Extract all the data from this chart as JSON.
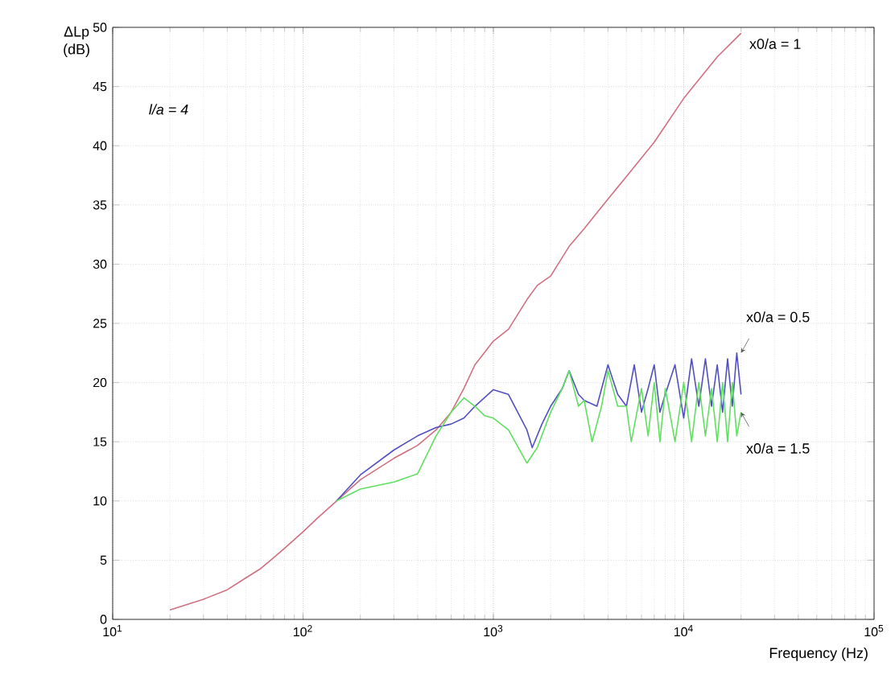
{
  "chart_data": {
    "type": "line",
    "xlabel": "Frequency (Hz)",
    "ylabel": "ΔLp (dB)",
    "log": "x",
    "grid": true,
    "line_style": "solid",
    "marker": "none",
    "xlim": [
      10,
      100000
    ],
    "ylim": [
      0,
      50
    ],
    "xticks": [
      {
        "value": 10,
        "label": "10$^{1}$"
      },
      {
        "value": 100,
        "label": "10$^{2}$"
      },
      {
        "value": 1000,
        "label": "10$^{3}$"
      },
      {
        "value": 10000,
        "label": "10$^{4}$"
      },
      {
        "value": 100000,
        "label": "10$^{5}$"
      }
    ],
    "yticks": [
      0,
      5,
      10,
      15,
      20,
      25,
      30,
      35,
      40,
      45,
      50
    ],
    "annotations": [
      "l/a = 4"
    ],
    "series": [
      {
        "name": "x0/a = 1",
        "color": "#d07080",
        "x": [
          20,
          30,
          40,
          50,
          60,
          70,
          80,
          100,
          120,
          150,
          200,
          300,
          400,
          500,
          600,
          700,
          800,
          1000,
          1200,
          1500,
          1700,
          2000,
          2500,
          3000,
          4000,
          5000,
          7000,
          10000,
          15000,
          20000
        ],
        "values": [
          0.8,
          1.7,
          2.5,
          3.5,
          4.3,
          5.2,
          6,
          7.4,
          8.6,
          10,
          11.8,
          13.6,
          14.7,
          16,
          17.5,
          19.5,
          21.5,
          23.5,
          24.5,
          27,
          28.2,
          29,
          31.5,
          33,
          35.5,
          37.4,
          40.3,
          44,
          47.5,
          49.5
        ]
      },
      {
        "name": "x0/a = 0.5",
        "color": "#5050c0",
        "x": [
          150,
          200,
          300,
          400,
          500,
          600,
          700,
          800,
          1000,
          1200,
          1500,
          1600,
          1800,
          2000,
          2300,
          2500,
          2800,
          3000,
          3500,
          4000,
          4500,
          5000,
          5500,
          6000,
          6500,
          7000,
          7500,
          8000,
          9000,
          10000,
          11000,
          12000,
          13000,
          14000,
          15000,
          16000,
          17000,
          18000,
          19000,
          20000
        ],
        "values": [
          10,
          12.2,
          14.3,
          15.5,
          16.2,
          16.5,
          17,
          18,
          19.4,
          19,
          16,
          14.5,
          16.5,
          18,
          19.5,
          21,
          19,
          18.5,
          18,
          21.5,
          19,
          18,
          21.5,
          17.5,
          19.5,
          21.5,
          17.5,
          19,
          21.5,
          17,
          22,
          18,
          22,
          18,
          21.5,
          17.5,
          22,
          18,
          22.5,
          19
        ]
      },
      {
        "name": "x0/a = 1.5",
        "color": "#60e060",
        "x": [
          150,
          200,
          300,
          400,
          500,
          600,
          700,
          800,
          900,
          1000,
          1200,
          1500,
          1700,
          2000,
          2300,
          2500,
          2800,
          3000,
          3300,
          3700,
          4000,
          4500,
          5000,
          5300,
          6000,
          6500,
          7000,
          7500,
          8000,
          9000,
          10000,
          11000,
          12000,
          13000,
          14000,
          15000,
          16000,
          17000,
          18000,
          19000,
          20000
        ],
        "values": [
          10,
          11,
          11.6,
          12.3,
          15.5,
          17.5,
          18.7,
          18,
          17.2,
          17,
          16,
          13.2,
          14.5,
          17.5,
          19.5,
          21,
          18,
          18.5,
          15,
          18,
          21,
          18,
          18,
          15,
          19.5,
          15.5,
          20,
          15,
          19.5,
          15,
          20,
          15,
          20,
          15.5,
          19.5,
          15,
          20,
          15,
          20,
          15.5,
          17.5
        ]
      }
    ]
  }
}
